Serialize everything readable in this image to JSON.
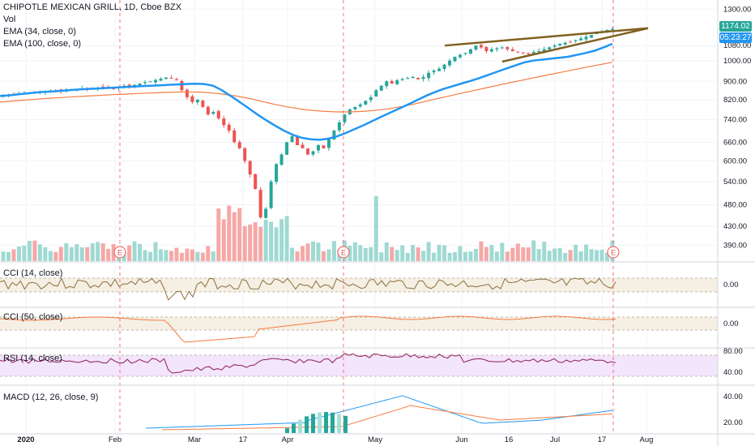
{
  "legend": {
    "title": "CHIPOTLE MEXICAN GRILL, 1D, Cboe BZX",
    "vol": "Vol",
    "ema34": "EMA (34, close, 0)",
    "ema100": "EMA (100, close, 0)"
  },
  "panes": {
    "cci14": "CCI (14, close)",
    "cci50": "CCI (50, close)",
    "rsi14": "RSI (14, close)",
    "macd": "MACD (12, 26, close, 9)"
  },
  "price_tags": {
    "last": "1174.02",
    "countdown": "05:23:27"
  },
  "event_marker": "E",
  "colors": {
    "up": "#26a69a",
    "down": "#ef5350",
    "ema34": "#2196f3",
    "ema100": "#f57c3f",
    "wedge": "#806020",
    "cci14": "#8d6e3c",
    "cci50": "#f57c3f",
    "rsi": "#8e1c5a",
    "macd": "#2196f3",
    "signal": "#f57c3f",
    "rsi_band": "#f3e5fb",
    "cci_band": "#f5efe4"
  },
  "chart_data": [
    {
      "type": "candlestick",
      "title": "CHIPOTLE MEXICAN GRILL, 1D, Cboe BZX",
      "y_ticks": [
        "1300.00",
        "1080.00",
        "1000.00",
        "900.00",
        "820.00",
        "740.00",
        "660.00",
        "600.00",
        "540.00",
        "480.00",
        "430.00",
        "390.00"
      ],
      "ylim": [
        360,
        1340
      ],
      "y_scale": "log",
      "x_ticks": [
        "2020",
        "Feb",
        "Mar",
        "17",
        "Apr",
        "May",
        "Jun",
        "16",
        "Jul",
        "17",
        "Aug"
      ],
      "last_price": 1174.02,
      "grid": true,
      "closes_approx": [
        838,
        840,
        843,
        846,
        848,
        850,
        852,
        854,
        856,
        858,
        860,
        857,
        862,
        864,
        866,
        868,
        866,
        870,
        872,
        874,
        870,
        866,
        875,
        880,
        878,
        884,
        890,
        896,
        900,
        906,
        912,
        918,
        914,
        905,
        860,
        830,
        810,
        820,
        790,
        760,
        770,
        745,
        720,
        700,
        660,
        640,
        600,
        560,
        520,
        450,
        470,
        540,
        590,
        620,
        660,
        680,
        650,
        640,
        620,
        630,
        650,
        640,
        670,
        700,
        730,
        760,
        780,
        790,
        800,
        815,
        830,
        860,
        880,
        900,
        890,
        905,
        910,
        915,
        920,
        910,
        920,
        940,
        950,
        960,
        980,
        1000,
        1020,
        1030,
        1040,
        1060,
        1080,
        1070,
        1050,
        1060,
        1065,
        1070,
        1060,
        1050,
        1045,
        1040,
        1035,
        1045,
        1050,
        1060,
        1070,
        1080,
        1090,
        1095,
        1100,
        1110,
        1120,
        1130,
        1140,
        1150,
        1160,
        1170,
        1174
      ]
    },
    {
      "type": "line",
      "name": "EMA (34, close, 0)",
      "values_approx": [
        835,
        838,
        842,
        846,
        850,
        853,
        855,
        858,
        861,
        864,
        866,
        868,
        870,
        872,
        874,
        876,
        878,
        880,
        882,
        884,
        886,
        888,
        889,
        888,
        880,
        860,
        835,
        810,
        785,
        760,
        738,
        718,
        700,
        685,
        675,
        670,
        668,
        672,
        680,
        692,
        706,
        720,
        736,
        752,
        768,
        784,
        800,
        818,
        836,
        852,
        866,
        878,
        890,
        902,
        915,
        930,
        945,
        960,
        975,
        990,
        1000,
        1005,
        1010,
        1015,
        1020,
        1030,
        1040,
        1052,
        1070,
        1090
      ]
    },
    {
      "type": "line",
      "name": "EMA (100, close, 0)",
      "values_approx": [
        810,
        814,
        818,
        822,
        826,
        829,
        832,
        835,
        838,
        841,
        843,
        846,
        848,
        850,
        852,
        853,
        852,
        848,
        842,
        834,
        824,
        812,
        800,
        790,
        782,
        776,
        772,
        770,
        770,
        772,
        776,
        782,
        790,
        800,
        812,
        824,
        836,
        848,
        860,
        872,
        884,
        896,
        908,
        920,
        932,
        944,
        956,
        968,
        980,
        992
      ]
    },
    {
      "type": "line",
      "name": "CCI (14, close)",
      "y_ticks": [
        "0.00"
      ],
      "band": [
        -100,
        100
      ]
    },
    {
      "type": "line",
      "name": "CCI (50, close)",
      "y_ticks": [
        "0.00"
      ],
      "band": [
        -100,
        100
      ]
    },
    {
      "type": "line",
      "name": "RSI (14, close)",
      "y_ticks": [
        "80.00",
        "40.00"
      ],
      "band": [
        30,
        70
      ]
    },
    {
      "type": "line",
      "name": "MACD (12, 26, close, 9)",
      "y_ticks": [
        "40.00",
        "20.00"
      ]
    }
  ]
}
